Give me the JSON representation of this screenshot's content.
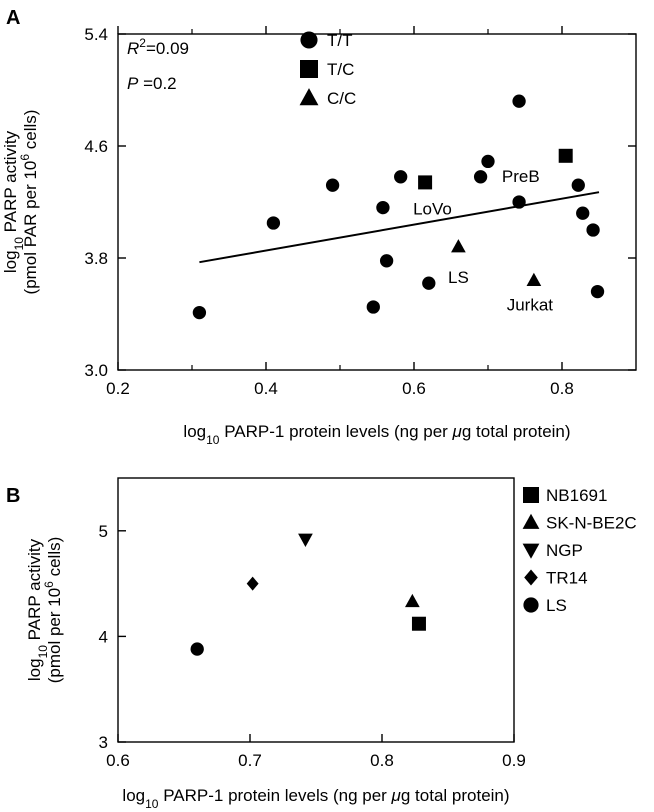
{
  "chart_data": [
    {
      "type": "scatter",
      "panel": "A",
      "xlabel": {
        "pre": "log",
        "sub": "10",
        "post": " PARP-1 protein levels (ng per ",
        "mu": "μ",
        "end": "g total protein)"
      },
      "ylabel": {
        "line1": {
          "pre": "log",
          "sub": "10",
          "post": " PARP activity"
        },
        "line2": {
          "pre": "(pmol PAR per 10",
          "sup": "6",
          "post": " cells)"
        }
      },
      "xlim": [
        0.2,
        0.9
      ],
      "ylim": [
        3.0,
        5.4
      ],
      "xticks": [
        "0.2",
        "0.4",
        "0.6",
        "0.8"
      ],
      "xtick_values": [
        0.2,
        0.4,
        0.6,
        0.8
      ],
      "yticks": [
        "3.0",
        "3.8",
        "4.6",
        "5.4"
      ],
      "ytick_values": [
        3.0,
        3.8,
        4.6,
        5.4
      ],
      "stats": {
        "r_prefix": "R",
        "r_sup": "2",
        "r_value": "=0.09",
        "p_prefix": "P",
        "p_value": " =0.2"
      },
      "legend": [
        {
          "label": "T/T",
          "marker": "circle"
        },
        {
          "label": "T/C",
          "marker": "square"
        },
        {
          "label": "C/C",
          "marker": "triangle"
        }
      ],
      "series": [
        {
          "name": "T/T",
          "marker": "circle",
          "points": [
            {
              "x": 0.31,
              "y": 3.41
            },
            {
              "x": 0.41,
              "y": 4.05
            },
            {
              "x": 0.49,
              "y": 4.32
            },
            {
              "x": 0.545,
              "y": 3.45
            },
            {
              "x": 0.558,
              "y": 4.16
            },
            {
              "x": 0.563,
              "y": 3.78
            },
            {
              "x": 0.582,
              "y": 4.38
            },
            {
              "x": 0.62,
              "y": 3.62
            },
            {
              "x": 0.69,
              "y": 4.38
            },
            {
              "x": 0.7,
              "y": 4.49
            },
            {
              "x": 0.742,
              "y": 4.2
            },
            {
              "x": 0.742,
              "y": 4.92
            },
            {
              "x": 0.822,
              "y": 4.32
            },
            {
              "x": 0.828,
              "y": 4.12
            },
            {
              "x": 0.842,
              "y": 4.0
            },
            {
              "x": 0.848,
              "y": 3.56
            }
          ]
        },
        {
          "name": "T/C",
          "marker": "square",
          "points": [
            {
              "x": 0.615,
              "y": 4.34,
              "label": "LoVo"
            },
            {
              "x": 0.805,
              "y": 4.53,
              "label": "PreB"
            }
          ]
        },
        {
          "name": "C/C",
          "marker": "triangle",
          "points": [
            {
              "x": 0.66,
              "y": 3.88,
              "label": "LS"
            },
            {
              "x": 0.762,
              "y": 3.64,
              "label": "Jurkat"
            }
          ]
        }
      ],
      "fit_line": {
        "x": [
          0.31,
          0.85
        ],
        "y": [
          3.77,
          4.27
        ]
      }
    },
    {
      "type": "scatter",
      "panel": "B",
      "xlabel": {
        "pre": "log",
        "sub": "10",
        "post": " PARP-1 protein levels (ng per ",
        "mu": "μ",
        "end": "g total protein)"
      },
      "ylabel": {
        "line1": {
          "pre": "log",
          "sub": "10",
          "post": " PARP activity"
        },
        "line2": {
          "pre": "(pmol per 10",
          "sup": "6",
          "post": " cells)"
        }
      },
      "xlim": [
        0.6,
        0.9
      ],
      "ylim": [
        3,
        5.5
      ],
      "xticks": [
        "0.6",
        "0.7",
        "0.8",
        "0.9"
      ],
      "xtick_values": [
        0.6,
        0.7,
        0.8,
        0.9
      ],
      "yticks": [
        "3",
        "4",
        "5"
      ],
      "ytick_values": [
        3,
        4,
        5
      ],
      "legend": [
        {
          "label": "NB1691",
          "marker": "square"
        },
        {
          "label": "SK-N-BE2C",
          "marker": "triangle"
        },
        {
          "label": "NGP",
          "marker": "triangle-down"
        },
        {
          "label": "TR14",
          "marker": "diamond"
        },
        {
          "label": "LS",
          "marker": "circle"
        }
      ],
      "series": [
        {
          "name": "NB1691",
          "marker": "square",
          "points": [
            {
              "x": 0.828,
              "y": 4.12
            }
          ]
        },
        {
          "name": "SK-N-BE2C",
          "marker": "triangle",
          "points": [
            {
              "x": 0.823,
              "y": 4.33
            }
          ]
        },
        {
          "name": "NGP",
          "marker": "triangle-down",
          "points": [
            {
              "x": 0.742,
              "y": 4.92
            }
          ]
        },
        {
          "name": "TR14",
          "marker": "diamond",
          "points": [
            {
              "x": 0.702,
              "y": 4.5
            }
          ]
        },
        {
          "name": "LS",
          "marker": "circle",
          "points": [
            {
              "x": 0.66,
              "y": 3.88
            }
          ]
        }
      ]
    }
  ]
}
